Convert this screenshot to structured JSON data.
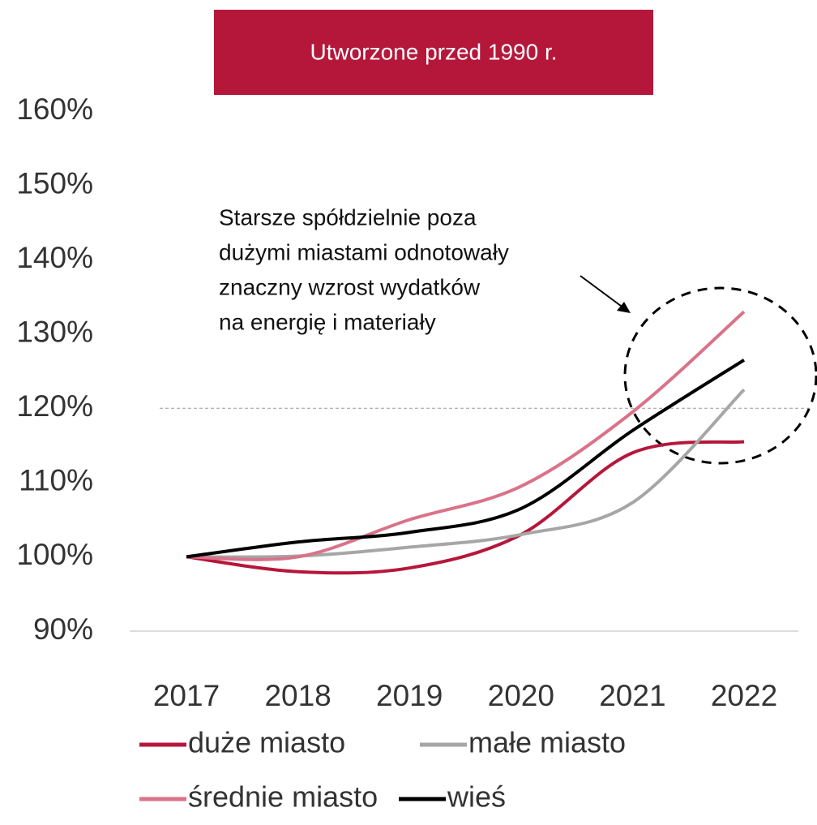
{
  "chart_data": {
    "type": "line",
    "title": "Utworzone przed 1990 r.",
    "annotation": [
      "Starsze spółdzielnie poza",
      "dużymi miastami odnotowały",
      "znaczny wzrost wydatków",
      "na energię i materiały"
    ],
    "categories": [
      "2017",
      "2018",
      "2019",
      "2020",
      "2021",
      "2022"
    ],
    "series": [
      {
        "name": "duże miasto",
        "color": "#b5173a",
        "values": [
          100,
          98,
          98.5,
          103,
          114,
          115.5
        ]
      },
      {
        "name": "małe miasto",
        "color": "#a6a6a6",
        "values": [
          100,
          100.1,
          101.3,
          103,
          107.3,
          122.5
        ]
      },
      {
        "name": "średnie miasto",
        "color": "#d97389",
        "values": [
          100,
          100,
          105,
          109.5,
          119.5,
          133
        ]
      },
      {
        "name": "wieś",
        "color": "#000000",
        "values": [
          100,
          102,
          103.3,
          106.5,
          117,
          126.5
        ]
      }
    ],
    "reference_line": 120,
    "ylim": [
      90,
      160
    ],
    "yticks": [
      {
        "value": 90,
        "label": "90%"
      },
      {
        "value": 100,
        "label": "100%"
      },
      {
        "value": 110,
        "label": "110%"
      },
      {
        "value": 120,
        "label": "120%"
      },
      {
        "value": 130,
        "label": "130%"
      },
      {
        "value": 140,
        "label": "140%"
      },
      {
        "value": 150,
        "label": "150%"
      },
      {
        "value": 160,
        "label": "160%"
      }
    ]
  }
}
